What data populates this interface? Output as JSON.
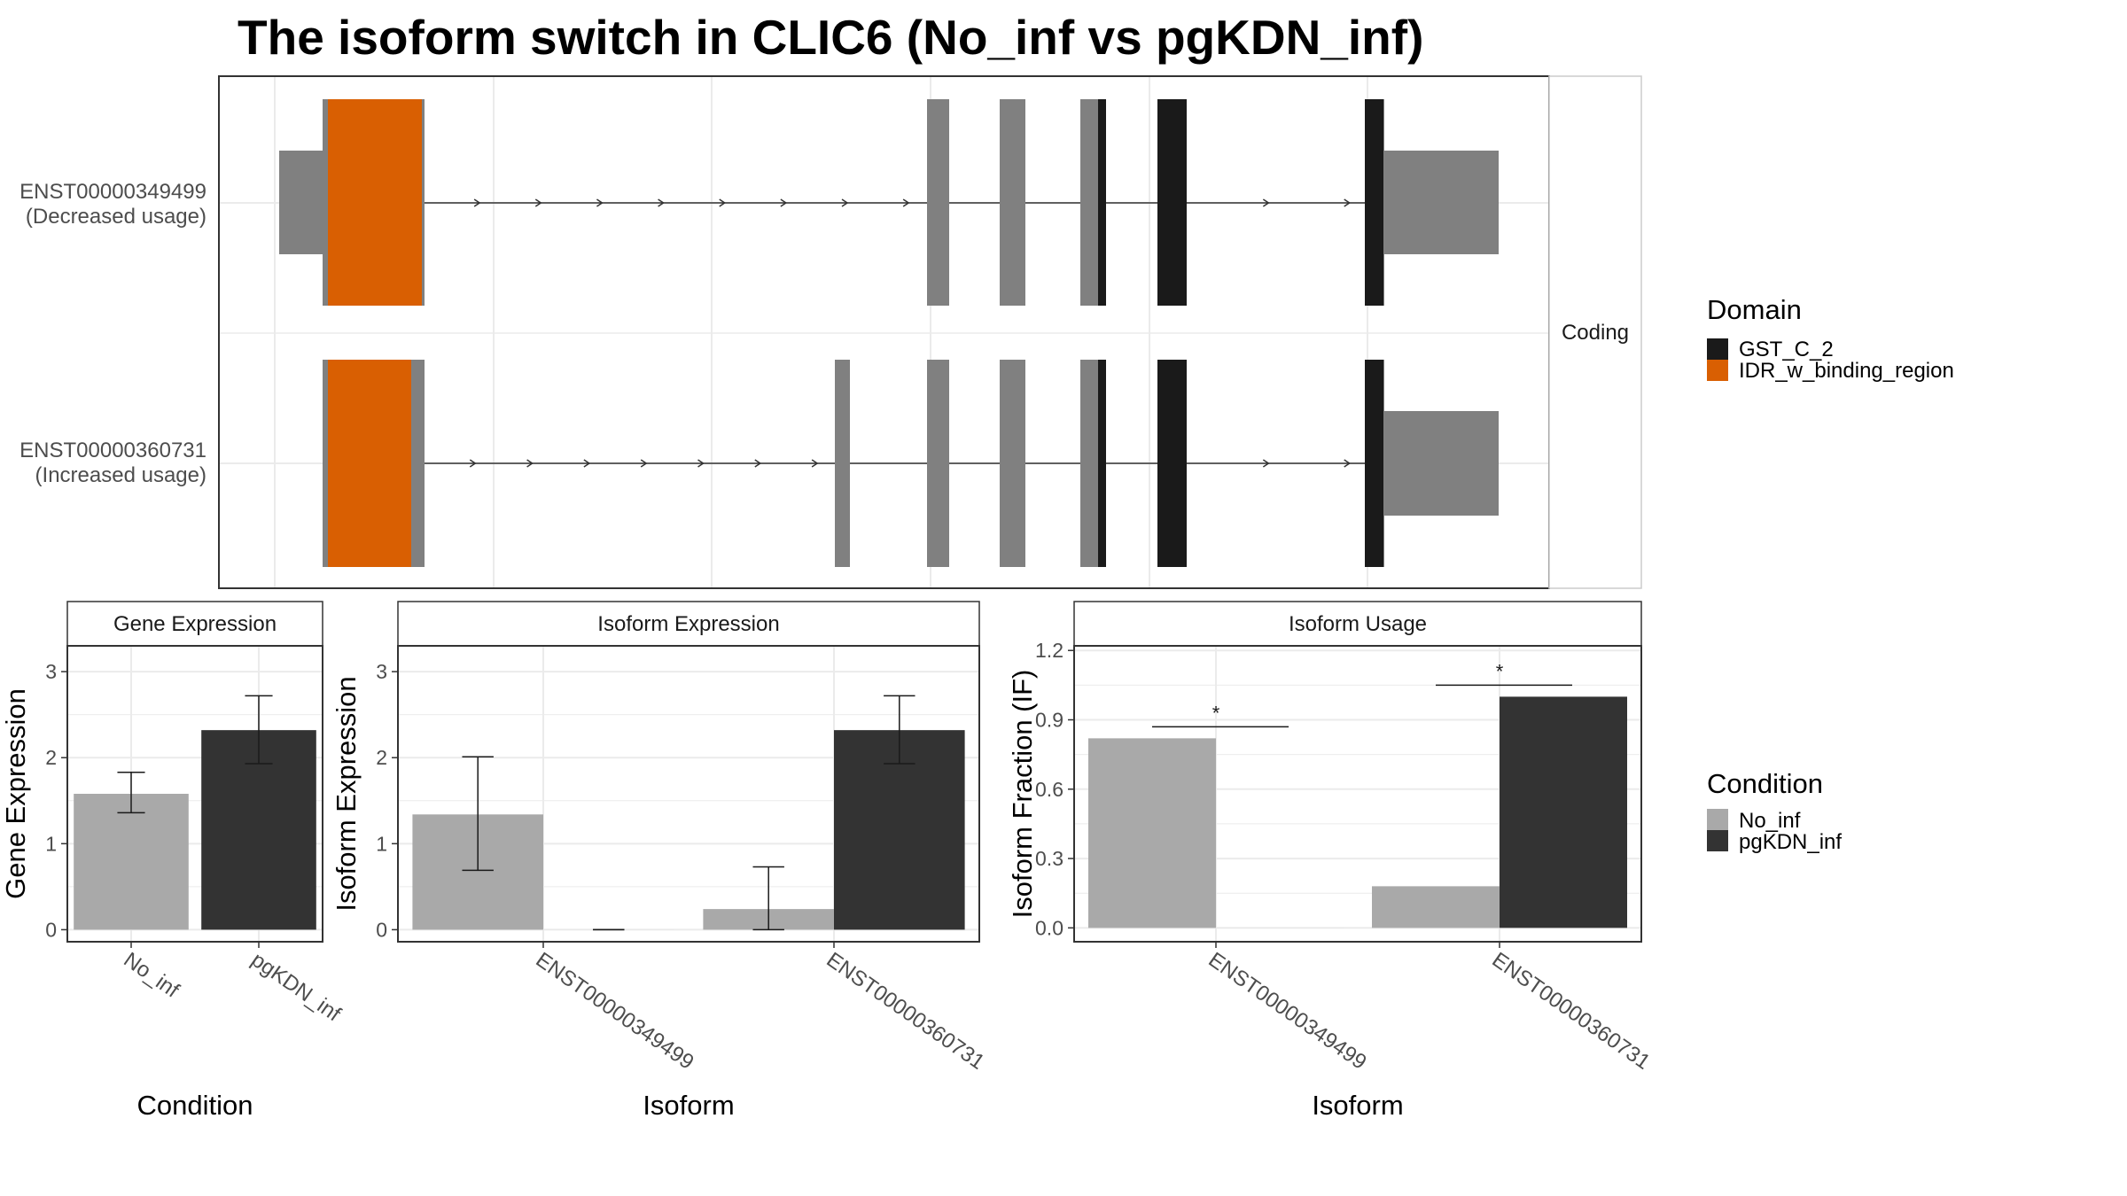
{
  "title": "The isoform switch in CLIC6 (No_inf vs pgKDN_inf)",
  "colors": {
    "gst": "#1a1a1a",
    "idr": "#d95f02",
    "exon": "#808080",
    "no_inf": "#a9a9a9",
    "pgkdn_inf": "#333333",
    "grid": "#ebebeb",
    "panel_border": "#333333",
    "strip_fill": "#f2f2f2"
  },
  "transcripts": {
    "facet_label": "Coding",
    "rows": [
      {
        "id": "ENST00000349499",
        "note": "(Decreased usage)",
        "intron_arrows": 8,
        "intron_arrows_2": 2
      },
      {
        "id": "ENST00000360731",
        "note": "(Increased usage)",
        "intron_arrows": 7,
        "intron_arrows_2": 2
      }
    ]
  },
  "legend_domain": {
    "title": "Domain",
    "items": [
      {
        "label": "GST_C_2",
        "color": "#1a1a1a"
      },
      {
        "label": "IDR_w_binding_region",
        "color": "#d95f02"
      }
    ]
  },
  "legend_condition": {
    "title": "Condition",
    "items": [
      {
        "label": "No_inf",
        "color": "#a9a9a9"
      },
      {
        "label": "pgKDN_inf",
        "color": "#333333"
      }
    ]
  },
  "chart_data": [
    {
      "type": "bar",
      "title": "Gene Expression",
      "xlabel": "Condition",
      "ylabel": "Gene Expression",
      "categories": [
        "No_inf",
        "pgKDN_inf"
      ],
      "series": [
        {
          "name": "",
          "values": [
            1.58,
            2.32
          ],
          "err_low": [
            1.36,
            1.93
          ],
          "err_high": [
            1.83,
            2.72
          ]
        }
      ],
      "yticks": [
        "0",
        "1",
        "2",
        "3"
      ],
      "ylim": [
        -0.14,
        3.3
      ]
    },
    {
      "type": "bar",
      "title": "Isoform Expression",
      "xlabel": "Isoform",
      "ylabel": "Isoform Expression",
      "categories": [
        "ENST00000349499",
        "ENST00000360731"
      ],
      "series": [
        {
          "name": "No_inf",
          "values": [
            1.34,
            0.24
          ],
          "err_low": [
            0.69,
            0.0
          ],
          "err_high": [
            2.01,
            0.73
          ]
        },
        {
          "name": "pgKDN_inf",
          "values": [
            0.0,
            2.32
          ],
          "err_low": [
            0.0,
            1.93
          ],
          "err_high": [
            0.0,
            2.72
          ]
        }
      ],
      "yticks": [
        "0",
        "1",
        "2",
        "3"
      ],
      "ylim": [
        -0.14,
        3.3
      ]
    },
    {
      "type": "bar",
      "title": "Isoform Usage",
      "xlabel": "Isoform",
      "ylabel": "Isoform Fraction (IF)",
      "categories": [
        "ENST00000349499",
        "ENST00000360731"
      ],
      "series": [
        {
          "name": "No_inf",
          "values": [
            0.82,
            0.18
          ]
        },
        {
          "name": "pgKDN_inf",
          "values": [
            0.0,
            1.0
          ]
        }
      ],
      "significance": [
        {
          "label": "*",
          "y": 0.87
        },
        {
          "label": "*",
          "y": 1.05
        }
      ],
      "yticks": [
        "0.0",
        "0.3",
        "0.6",
        "0.9",
        "1.2"
      ],
      "ylim": [
        -0.06,
        1.22
      ]
    }
  ]
}
